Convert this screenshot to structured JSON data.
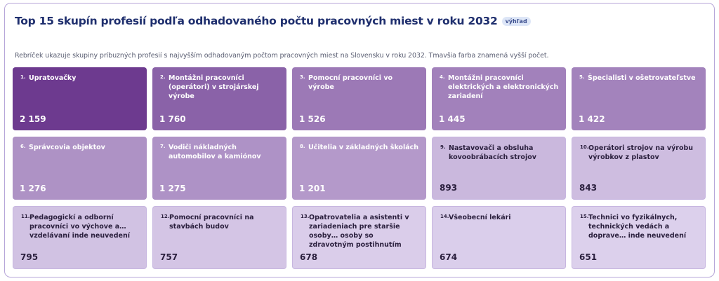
{
  "header": {
    "title": "Top 15 skupín profesií podľa odhadovaného počtu pracovných miest v roku 2032",
    "badge": "výhľad",
    "subtitle": "Rebríček ukazuje skupiny príbuzných profesií s najvyšším odhadovaným počtom pracovných miest na Slovensku v roku 2032. Tmavšia farba znamená vyšší počet."
  },
  "colors": {
    "dark": "#6d3a8f",
    "light": "#dcd0ec",
    "text_dark": "#ffffff",
    "text_light": "#2a1f3d"
  },
  "chart_data": {
    "type": "treemap-grid",
    "title": "Top 15 skupín profesií podľa odhadovaného počtu pracovných miest v roku 2032",
    "items": [
      {
        "rank": "1.",
        "name": "Upratovačky",
        "value": 2159,
        "label": "2 159"
      },
      {
        "rank": "2.",
        "name": "Montážni pracovníci (operátori) v strojárskej výrobe",
        "value": 1760,
        "label": "1 760"
      },
      {
        "rank": "3.",
        "name": "Pomocní pracovníci vo výrobe",
        "value": 1526,
        "label": "1 526"
      },
      {
        "rank": "4.",
        "name": "Montážni pracovníci elektrických a elektronických zariadení",
        "value": 1445,
        "label": "1 445"
      },
      {
        "rank": "5.",
        "name": "Špecialisti v ošetrovateľstve",
        "value": 1422,
        "label": "1 422"
      },
      {
        "rank": "6.",
        "name": "Správcovia objektov",
        "value": 1276,
        "label": "1 276"
      },
      {
        "rank": "7.",
        "name": "Vodiči nákladných automobilov a kamiónov",
        "value": 1275,
        "label": "1 275"
      },
      {
        "rank": "8.",
        "name": "Učitelia v základných školách",
        "value": 1201,
        "label": "1 201"
      },
      {
        "rank": "9.",
        "name": "Nastavovači a obsluha kovoobrábacích strojov",
        "value": 893,
        "label": "893"
      },
      {
        "rank": "10.",
        "name": "Operátori strojov na výrobu výrobkov z plastov",
        "value": 843,
        "label": "843"
      },
      {
        "rank": "11.",
        "name": "Pedagogickí a odborní pracovníci vo výchove a… vzdelávaní inde neuvedení",
        "value": 795,
        "label": "795"
      },
      {
        "rank": "12.",
        "name": "Pomocní pracovníci na stavbách budov",
        "value": 757,
        "label": "757"
      },
      {
        "rank": "13.",
        "name": "Opatrovatelia a asistenti v zariadeniach pre staršie osoby… osoby so zdravotným postihnutím",
        "value": 678,
        "label": "678"
      },
      {
        "rank": "14.",
        "name": "Všeobecní lekári",
        "value": 674,
        "label": "674"
      },
      {
        "rank": "15.",
        "name": "Technici vo fyzikálnych, technických vedách a doprave… inde neuvedení",
        "value": 651,
        "label": "651"
      }
    ]
  }
}
